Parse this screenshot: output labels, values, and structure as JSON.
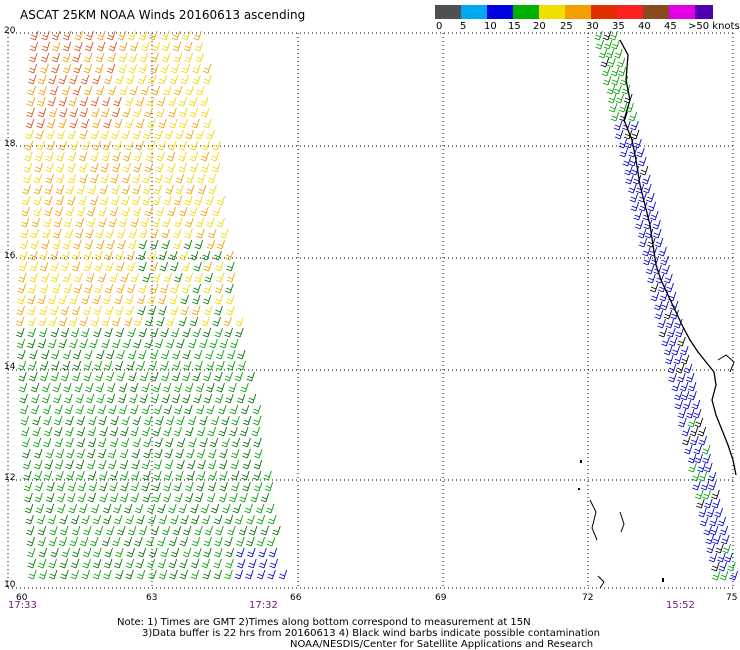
{
  "title": "ASCAT 25KM NOAA Winds 20160613 ascending",
  "legend": {
    "colors": [
      "#505050",
      "#9a9a9a",
      "#00a8f0",
      "#0000e0",
      "#00b000",
      "#007000",
      "#f0e000",
      "#f0a000",
      "#e03000",
      "#b01818",
      "#ff2020",
      "#8a4a20",
      "#e000e0",
      "#8000a0",
      "#5000b0"
    ],
    "labels": [
      "0",
      "5",
      "10",
      "15",
      "20",
      "25",
      "30",
      "35",
      "40",
      "45",
      ">50 knots"
    ]
  },
  "axes": {
    "y_ticks": [
      "20",
      "18",
      "16",
      "14",
      "12",
      "10"
    ],
    "x_ticks": [
      "60",
      "63",
      "66",
      "69",
      "72",
      "75"
    ]
  },
  "times": [
    "17:33",
    "17:32",
    "15:52"
  ],
  "notes": {
    "line1": "Note: 1) Times are GMT 2)Times along bottom correspond to measurement at 15N",
    "line2": "3)Data buffer is 22 hrs from 20160613 4) Black wind barbs indicate possible contamination",
    "line3": "NOAA/NESDIS/Center for Satellite Applications and Research"
  }
}
